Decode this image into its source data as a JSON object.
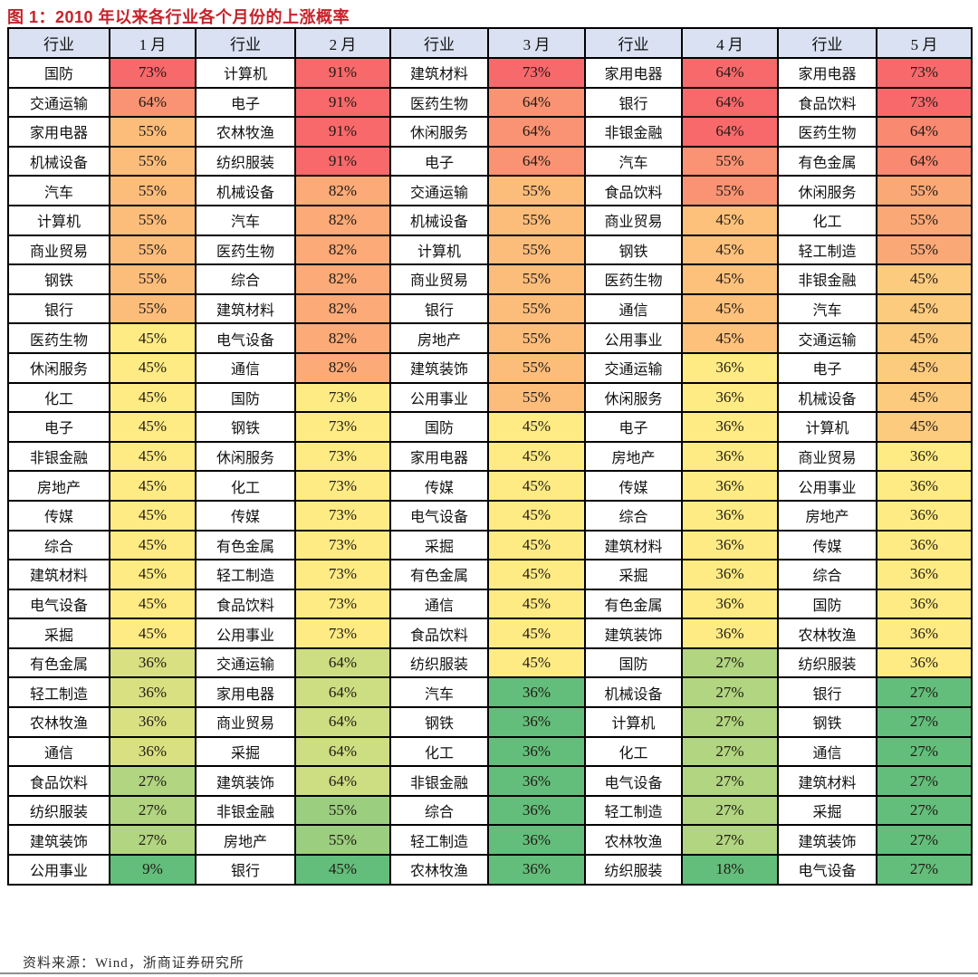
{
  "chart_data": {
    "type": "heatmap",
    "title": "图 1：2010 年以来各行业各个月份的上涨概率",
    "source": "资料来源：Wind，浙商证券研究所",
    "industry_header": "行业",
    "legend": "cell fill encodes per-column rank: red = highest probability, yellow = middle, green = lowest",
    "color_scale": {
      "max": "#F8696B",
      "mid": "#FFEB84",
      "min": "#63BE7B"
    },
    "months": [
      {
        "label": "1 月",
        "colors": {
          "73%": "#F8696B",
          "64%": "#FA9373",
          "55%": "#FCBD7B",
          "45%": "#FFEB84",
          "36%": "#D8E082",
          "27%": "#B1D580",
          "9%": "#63BE7B"
        },
        "rows": [
          [
            "国防",
            "73%"
          ],
          [
            "交通运输",
            "64%"
          ],
          [
            "家用电器",
            "55%"
          ],
          [
            "机械设备",
            "55%"
          ],
          [
            "汽车",
            "55%"
          ],
          [
            "计算机",
            "55%"
          ],
          [
            "商业贸易",
            "55%"
          ],
          [
            "钢铁",
            "55%"
          ],
          [
            "银行",
            "55%"
          ],
          [
            "医药生物",
            "45%"
          ],
          [
            "休闲服务",
            "45%"
          ],
          [
            "化工",
            "45%"
          ],
          [
            "电子",
            "45%"
          ],
          [
            "非银金融",
            "45%"
          ],
          [
            "房地产",
            "45%"
          ],
          [
            "传媒",
            "45%"
          ],
          [
            "综合",
            "45%"
          ],
          [
            "建筑材料",
            "45%"
          ],
          [
            "电气设备",
            "45%"
          ],
          [
            "采掘",
            "45%"
          ],
          [
            "有色金属",
            "36%"
          ],
          [
            "轻工制造",
            "36%"
          ],
          [
            "农林牧渔",
            "36%"
          ],
          [
            "通信",
            "36%"
          ],
          [
            "食品饮料",
            "27%"
          ],
          [
            "纺织服装",
            "27%"
          ],
          [
            "建筑装饰",
            "27%"
          ],
          [
            "公用事业",
            "9%"
          ]
        ]
      },
      {
        "label": "2 月",
        "colors": {
          "91%": "#F8696B",
          "82%": "#FBAA78",
          "73%": "#FFEB84",
          "64%": "#CDDD81",
          "55%": "#9BCE7E",
          "45%": "#63BE7B"
        },
        "rows": [
          [
            "计算机",
            "91%"
          ],
          [
            "电子",
            "91%"
          ],
          [
            "农林牧渔",
            "91%"
          ],
          [
            "纺织服装",
            "91%"
          ],
          [
            "机械设备",
            "82%"
          ],
          [
            "汽车",
            "82%"
          ],
          [
            "医药生物",
            "82%"
          ],
          [
            "综合",
            "82%"
          ],
          [
            "建筑材料",
            "82%"
          ],
          [
            "电气设备",
            "82%"
          ],
          [
            "通信",
            "82%"
          ],
          [
            "国防",
            "73%"
          ],
          [
            "钢铁",
            "73%"
          ],
          [
            "休闲服务",
            "73%"
          ],
          [
            "化工",
            "73%"
          ],
          [
            "传媒",
            "73%"
          ],
          [
            "有色金属",
            "73%"
          ],
          [
            "轻工制造",
            "73%"
          ],
          [
            "食品饮料",
            "73%"
          ],
          [
            "公用事业",
            "73%"
          ],
          [
            "交通运输",
            "64%"
          ],
          [
            "家用电器",
            "64%"
          ],
          [
            "商业贸易",
            "64%"
          ],
          [
            "采掘",
            "64%"
          ],
          [
            "建筑装饰",
            "64%"
          ],
          [
            "非银金融",
            "55%"
          ],
          [
            "房地产",
            "55%"
          ],
          [
            "银行",
            "45%"
          ]
        ]
      },
      {
        "label": "3 月",
        "colors": {
          "73%": "#F8696B",
          "64%": "#FA9373",
          "55%": "#FCBD7B",
          "45%": "#FFEB84",
          "36%": "#63BE7B"
        },
        "rows": [
          [
            "建筑材料",
            "73%"
          ],
          [
            "医药生物",
            "64%"
          ],
          [
            "休闲服务",
            "64%"
          ],
          [
            "电子",
            "64%"
          ],
          [
            "交通运输",
            "55%"
          ],
          [
            "机械设备",
            "55%"
          ],
          [
            "计算机",
            "55%"
          ],
          [
            "商业贸易",
            "55%"
          ],
          [
            "银行",
            "55%"
          ],
          [
            "房地产",
            "55%"
          ],
          [
            "建筑装饰",
            "55%"
          ],
          [
            "公用事业",
            "55%"
          ],
          [
            "国防",
            "45%"
          ],
          [
            "家用电器",
            "45%"
          ],
          [
            "传媒",
            "45%"
          ],
          [
            "电气设备",
            "45%"
          ],
          [
            "采掘",
            "45%"
          ],
          [
            "有色金属",
            "45%"
          ],
          [
            "通信",
            "45%"
          ],
          [
            "食品饮料",
            "45%"
          ],
          [
            "纺织服装",
            "45%"
          ],
          [
            "汽车",
            "36%"
          ],
          [
            "钢铁",
            "36%"
          ],
          [
            "化工",
            "36%"
          ],
          [
            "非银金融",
            "36%"
          ],
          [
            "综合",
            "36%"
          ],
          [
            "轻工制造",
            "36%"
          ],
          [
            "农林牧渔",
            "36%"
          ]
        ]
      },
      {
        "label": "4 月",
        "colors": {
          "64%": "#F8696B",
          "55%": "#FA9373",
          "45%": "#FDC17C",
          "36%": "#FFEB84",
          "27%": "#B1D580",
          "18%": "#63BE7B"
        },
        "rows": [
          [
            "家用电器",
            "64%"
          ],
          [
            "银行",
            "64%"
          ],
          [
            "非银金融",
            "64%"
          ],
          [
            "汽车",
            "55%"
          ],
          [
            "食品饮料",
            "55%"
          ],
          [
            "商业贸易",
            "45%"
          ],
          [
            "钢铁",
            "45%"
          ],
          [
            "医药生物",
            "45%"
          ],
          [
            "通信",
            "45%"
          ],
          [
            "公用事业",
            "45%"
          ],
          [
            "交通运输",
            "36%"
          ],
          [
            "休闲服务",
            "36%"
          ],
          [
            "电子",
            "36%"
          ],
          [
            "房地产",
            "36%"
          ],
          [
            "传媒",
            "36%"
          ],
          [
            "综合",
            "36%"
          ],
          [
            "建筑材料",
            "36%"
          ],
          [
            "采掘",
            "36%"
          ],
          [
            "有色金属",
            "36%"
          ],
          [
            "建筑装饰",
            "36%"
          ],
          [
            "国防",
            "27%"
          ],
          [
            "机械设备",
            "27%"
          ],
          [
            "计算机",
            "27%"
          ],
          [
            "化工",
            "27%"
          ],
          [
            "电气设备",
            "27%"
          ],
          [
            "轻工制造",
            "27%"
          ],
          [
            "农林牧渔",
            "27%"
          ],
          [
            "纺织服装",
            "18%"
          ]
        ]
      },
      {
        "label": "5 月",
        "colors": {
          "73%": "#F8696B",
          "64%": "#FA8971",
          "55%": "#FBA877",
          "45%": "#FDCB7E",
          "36%": "#FFEB84",
          "27%": "#63BE7B"
        },
        "rows": [
          [
            "家用电器",
            "73%"
          ],
          [
            "食品饮料",
            "73%"
          ],
          [
            "医药生物",
            "64%"
          ],
          [
            "有色金属",
            "64%"
          ],
          [
            "休闲服务",
            "55%"
          ],
          [
            "化工",
            "55%"
          ],
          [
            "轻工制造",
            "55%"
          ],
          [
            "非银金融",
            "45%"
          ],
          [
            "汽车",
            "45%"
          ],
          [
            "交通运输",
            "45%"
          ],
          [
            "电子",
            "45%"
          ],
          [
            "机械设备",
            "45%"
          ],
          [
            "计算机",
            "45%"
          ],
          [
            "商业贸易",
            "36%"
          ],
          [
            "公用事业",
            "36%"
          ],
          [
            "房地产",
            "36%"
          ],
          [
            "传媒",
            "36%"
          ],
          [
            "综合",
            "36%"
          ],
          [
            "国防",
            "36%"
          ],
          [
            "农林牧渔",
            "36%"
          ],
          [
            "纺织服装",
            "36%"
          ],
          [
            "银行",
            "27%"
          ],
          [
            "钢铁",
            "27%"
          ],
          [
            "通信",
            "27%"
          ],
          [
            "建筑材料",
            "27%"
          ],
          [
            "采掘",
            "27%"
          ],
          [
            "建筑装饰",
            "27%"
          ],
          [
            "电气设备",
            "27%"
          ]
        ]
      }
    ]
  }
}
